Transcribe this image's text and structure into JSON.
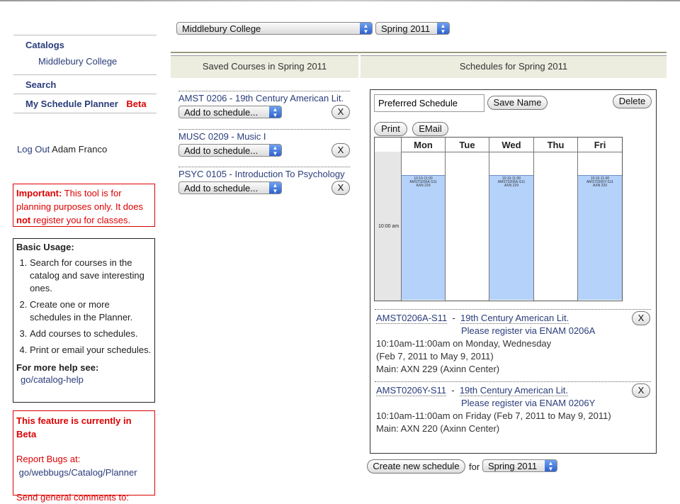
{
  "sidebar": {
    "catalogs": "Catalogs",
    "catalog_item": "Middlebury College",
    "search": "Search",
    "planner": "My Schedule Planner",
    "beta": "Beta",
    "logout": "Log Out",
    "user": "Adam Franco",
    "important_label": "Important:",
    "important_text1": " This tool is for planning purposes only. It does ",
    "important_not": "not",
    "important_text2": " register you for classes.",
    "usage_title": "Basic Usage:",
    "usage_items": [
      "Search for courses in the catalog and save interesting ones.",
      "Create one or more schedules in the Planner.",
      "Add courses to schedules.",
      "Print or email your schedules."
    ],
    "help_title": "For more help see:",
    "help_link": "go/catalog-help",
    "beta_title": "This feature is currently in Beta",
    "bugs_label": "Report Bugs at:",
    "bugs_link": "go/webbugs/Catalog/Planner",
    "comments": "Send general comments to:"
  },
  "top": {
    "college": "Middlebury College",
    "term": "Spring 2011"
  },
  "saved": {
    "header": "Saved Courses in Spring 2011",
    "add_label": "Add to schedule...",
    "remove_label": "X",
    "courses": [
      "AMST 0206 - 19th Century American Lit.",
      "MUSC 0209 - Music I",
      "PSYC 0105 - Introduction To Psychology"
    ]
  },
  "schedules": {
    "header": "Schedules for Spring 2011",
    "name_value": "Preferred Schedule",
    "save_name": "Save Name",
    "delete": "Delete",
    "print": "Print",
    "email": "EMail",
    "days": [
      "Mon",
      "Tue",
      "Wed",
      "Thu",
      "Fri"
    ],
    "time_label": "10:00 am",
    "event_mwf1": [
      "10:10-11:00",
      "AMST0206A-S11",
      "AXN 229"
    ],
    "event_fri": [
      "10:10-11:00",
      "AMST0206Y-S11",
      "AXN 220"
    ],
    "entries": [
      {
        "code": "AMST0206A-S11",
        "title": "19th Century American Lit.",
        "register": "Please register via ENAM 0206A",
        "time": "10:10am-11:00am on Monday, Wednesday",
        "dates": "(Feb 7, 2011 to May 9, 2011)",
        "location": "Main: AXN 229 (Axinn Center)"
      },
      {
        "code": "AMST0206Y-S11",
        "title": "19th Century American Lit.",
        "register": "Please register via ENAM 0206Y",
        "time": "10:10am-11:00am on Friday (Feb 7, 2011 to May 9, 2011)",
        "location": "Main: AXN 220 (Axinn Center)"
      }
    ],
    "create_new": "Create new schedule",
    "for_label": "for",
    "term": "Spring 2011",
    "dash": "-",
    "remove": "X"
  }
}
